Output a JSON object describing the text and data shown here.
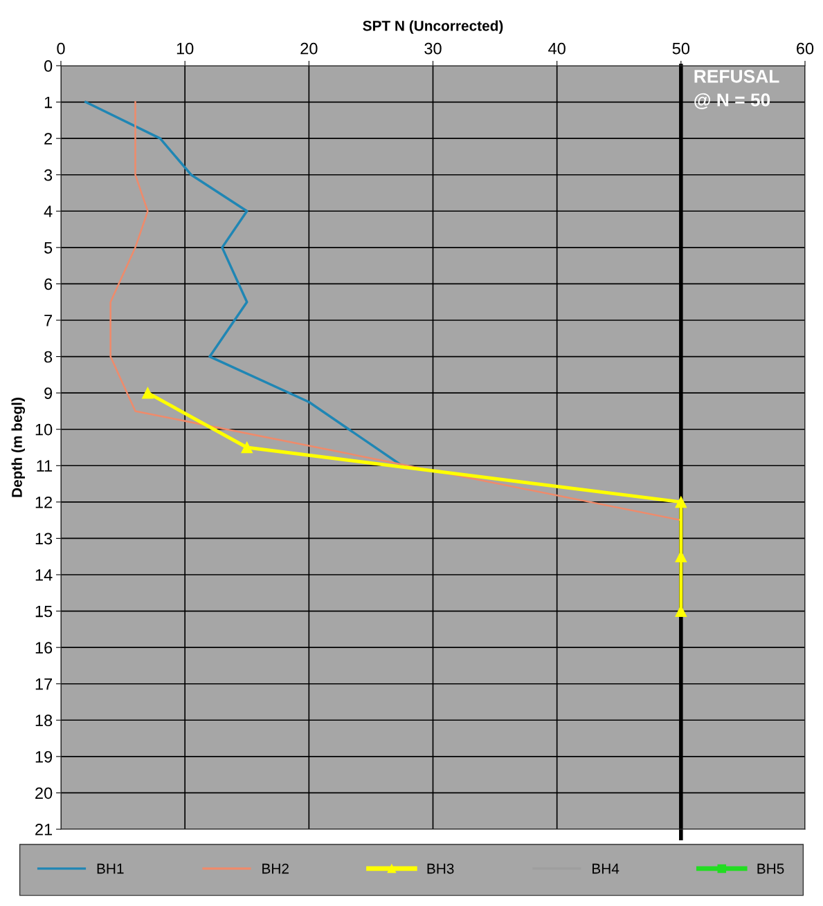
{
  "chart_data": {
    "type": "line",
    "xlabel": "SPT N (Uncorrected)",
    "ylabel": "Depth (m begl)",
    "xlim": [
      0,
      60
    ],
    "xticks": [
      0,
      10,
      20,
      30,
      40,
      50,
      60
    ],
    "ylim": [
      21,
      0
    ],
    "yticks": [
      0,
      1,
      2,
      3,
      4,
      5,
      6,
      7,
      8,
      9,
      10,
      11,
      12,
      13,
      14,
      15,
      16,
      17,
      18,
      19,
      20,
      21
    ],
    "grid": true,
    "legend": "bottom",
    "series": [
      {
        "name": "BH1",
        "color": "#1f86b4",
        "marker": "none",
        "x": [
          2,
          8,
          10.5,
          15,
          13,
          15,
          14,
          12,
          20,
          27.5
        ],
        "values": [
          1,
          2,
          3,
          4,
          5,
          6.5,
          7,
          8,
          9.25,
          11
        ]
      },
      {
        "name": "BH2",
        "color": "#f08a6a",
        "marker": "none",
        "x": [
          6,
          6,
          6,
          7,
          6,
          4,
          4,
          6,
          50
        ],
        "values": [
          1,
          2,
          3,
          4,
          5,
          6.5,
          8,
          9.5,
          12.5
        ]
      },
      {
        "name": "BH3",
        "color": "#ffff00",
        "marker": "triangle",
        "x": [
          7,
          15,
          50,
          50,
          50
        ],
        "values": [
          9,
          10.5,
          12,
          13.5,
          15
        ]
      },
      {
        "name": "BH4",
        "color": "#9e9e9e",
        "marker": "none"
      },
      {
        "name": "BH5",
        "color": "#22dd22",
        "marker": "square"
      }
    ],
    "ref_lines": [
      {
        "axis": "x",
        "value": 50,
        "label": "REFUSAL\n@ N = 50",
        "color": "#000000",
        "line_style": "solid"
      }
    ]
  }
}
